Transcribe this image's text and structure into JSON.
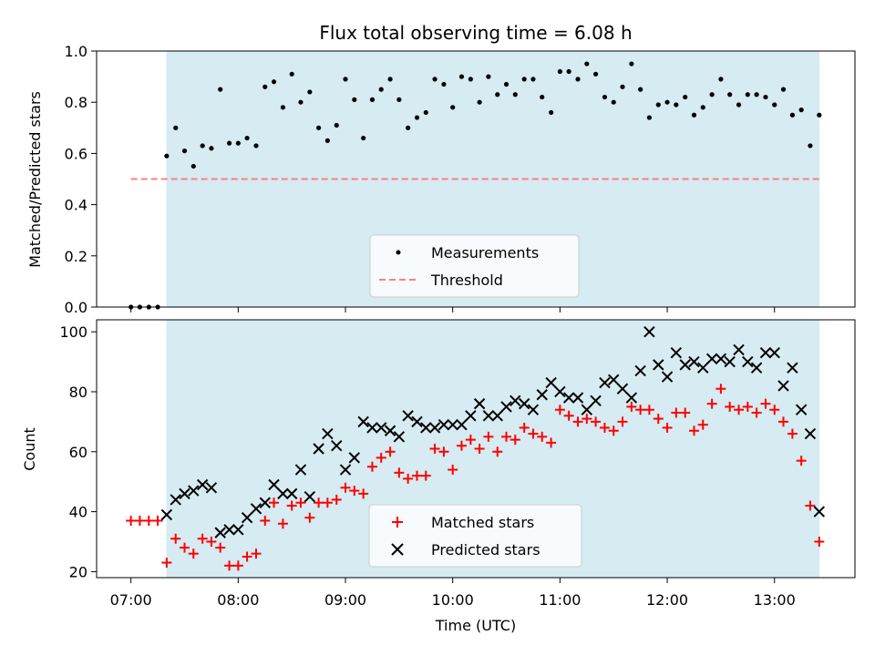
{
  "chart_data": {
    "type": "scatter",
    "title": "Flux total observing time = 6.08 h",
    "xlabel": "Time (UTC)",
    "x_ticks": [
      "07:00",
      "08:00",
      "09:00",
      "10:00",
      "11:00",
      "12:00",
      "13:00"
    ],
    "xlim_hours": [
      6.68,
      13.75
    ],
    "shaded_interval_hours": [
      7.33,
      13.42
    ],
    "colors": {
      "shade": "#add8e6",
      "measurement": "#000000",
      "threshold": "#ff7f7f",
      "matched": "#ff0000",
      "predicted": "#000000"
    },
    "panels": [
      {
        "ylabel": "Matched/Predicted stars",
        "ylim": [
          0,
          1.0
        ],
        "y_ticks": [
          "0.0",
          "0.2",
          "0.4",
          "0.6",
          "0.8",
          "1.0"
        ],
        "threshold": {
          "name": "Threshold",
          "value": 0.5,
          "x_range_hours": [
            7.0,
            13.42
          ],
          "style": "dashed"
        },
        "legend": {
          "placement": "lower center",
          "entries": [
            "Measurements",
            "Threshold"
          ]
        },
        "series": [
          {
            "name": "Measurements",
            "marker": "dot",
            "x": [
              7.0,
              7.083,
              7.167,
              7.25,
              7.333,
              7.417,
              7.5,
              7.583,
              7.667,
              7.75,
              7.833,
              7.917,
              8.0,
              8.083,
              8.167,
              8.25,
              8.333,
              8.417,
              8.5,
              8.583,
              8.667,
              8.75,
              8.833,
              8.917,
              9.0,
              9.083,
              9.167,
              9.25,
              9.333,
              9.417,
              9.5,
              9.583,
              9.667,
              9.75,
              9.833,
              9.917,
              10.0,
              10.083,
              10.167,
              10.25,
              10.333,
              10.417,
              10.5,
              10.583,
              10.667,
              10.75,
              10.833,
              10.917,
              11.0,
              11.083,
              11.167,
              11.25,
              11.333,
              11.417,
              11.5,
              11.583,
              11.667,
              11.75,
              11.833,
              11.917,
              12.0,
              12.083,
              12.167,
              12.25,
              12.333,
              12.417,
              12.5,
              12.583,
              12.667,
              12.75,
              12.833,
              12.917,
              13.0,
              13.083,
              13.167,
              13.25,
              13.333,
              13.417
            ],
            "y": [
              0,
              0,
              0,
              0,
              0.59,
              0.7,
              0.61,
              0.55,
              0.63,
              0.62,
              0.85,
              0.64,
              0.64,
              0.66,
              0.63,
              0.86,
              0.88,
              0.78,
              0.91,
              0.8,
              0.84,
              0.7,
              0.65,
              0.71,
              0.89,
              0.81,
              0.66,
              0.81,
              0.85,
              0.89,
              0.81,
              0.7,
              0.74,
              0.76,
              0.89,
              0.87,
              0.78,
              0.9,
              0.89,
              0.8,
              0.9,
              0.83,
              0.87,
              0.83,
              0.89,
              0.89,
              0.82,
              0.76,
              0.92,
              0.92,
              0.89,
              0.95,
              0.91,
              0.82,
              0.8,
              0.86,
              0.95,
              0.85,
              0.74,
              0.79,
              0.8,
              0.79,
              0.82,
              0.75,
              0.78,
              0.83,
              0.89,
              0.83,
              0.79,
              0.83,
              0.83,
              0.82,
              0.79,
              0.85,
              0.75,
              0.77,
              0.63,
              0.75
            ]
          }
        ]
      },
      {
        "ylabel": "Count",
        "ylim": [
          18,
          104
        ],
        "y_ticks": [
          "20",
          "40",
          "60",
          "80",
          "100"
        ],
        "legend": {
          "placement": "lower center",
          "entries": [
            "Matched stars",
            "Predicted stars"
          ]
        },
        "series": [
          {
            "name": "Matched stars",
            "marker": "plus",
            "x": [
              7.0,
              7.083,
              7.167,
              7.25,
              7.333,
              7.417,
              7.5,
              7.583,
              7.667,
              7.75,
              7.833,
              7.917,
              8.0,
              8.083,
              8.167,
              8.25,
              8.333,
              8.417,
              8.5,
              8.583,
              8.667,
              8.75,
              8.833,
              8.917,
              9.0,
              9.083,
              9.167,
              9.25,
              9.333,
              9.417,
              9.5,
              9.583,
              9.667,
              9.75,
              9.833,
              9.917,
              10.0,
              10.083,
              10.167,
              10.25,
              10.333,
              10.417,
              10.5,
              10.583,
              10.667,
              10.75,
              10.833,
              10.917,
              11.0,
              11.083,
              11.167,
              11.25,
              11.333,
              11.417,
              11.5,
              11.583,
              11.667,
              11.75,
              11.833,
              11.917,
              12.0,
              12.083,
              12.167,
              12.25,
              12.333,
              12.417,
              12.5,
              12.583,
              12.667,
              12.75,
              12.833,
              12.917,
              13.0,
              13.083,
              13.167,
              13.25,
              13.333,
              13.417
            ],
            "y": [
              37,
              37,
              37,
              37,
              23,
              31,
              28,
              26,
              31,
              30,
              28,
              22,
              22,
              25,
              26,
              37,
              43,
              36,
              42,
              43,
              38,
              43,
              43,
              44,
              48,
              47,
              46,
              55,
              58,
              60,
              53,
              51,
              52,
              52,
              61,
              60,
              54,
              62,
              64,
              61,
              65,
              60,
              65,
              64,
              68,
              66,
              65,
              63,
              74,
              72,
              70,
              71,
              70,
              68,
              67,
              70,
              75,
              74,
              74,
              71,
              68,
              73,
              73,
              67,
              69,
              76,
              81,
              75,
              74,
              75,
              73,
              76,
              74,
              70,
              66,
              57,
              42,
              30
            ]
          },
          {
            "name": "Predicted stars",
            "marker": "x",
            "x": [
              7.333,
              7.417,
              7.5,
              7.583,
              7.667,
              7.75,
              7.833,
              7.917,
              8.0,
              8.083,
              8.167,
              8.25,
              8.333,
              8.417,
              8.5,
              8.583,
              8.667,
              8.75,
              8.833,
              8.917,
              9.0,
              9.083,
              9.167,
              9.25,
              9.333,
              9.417,
              9.5,
              9.583,
              9.667,
              9.75,
              9.833,
              9.917,
              10.0,
              10.083,
              10.167,
              10.25,
              10.333,
              10.417,
              10.5,
              10.583,
              10.667,
              10.75,
              10.833,
              10.917,
              11.0,
              11.083,
              11.167,
              11.25,
              11.333,
              11.417,
              11.5,
              11.583,
              11.667,
              11.75,
              11.833,
              11.917,
              12.0,
              12.083,
              12.167,
              12.25,
              12.333,
              12.417,
              12.5,
              12.583,
              12.667,
              12.75,
              12.833,
              12.917,
              13.0,
              13.083,
              13.167,
              13.25,
              13.333,
              13.417
            ],
            "y": [
              39,
              44,
              46,
              47,
              49,
              48,
              33,
              34,
              34,
              38,
              41,
              43,
              49,
              46,
              46,
              54,
              45,
              61,
              66,
              62,
              54,
              58,
              70,
              68,
              68,
              67,
              65,
              72,
              70,
              68,
              68,
              69,
              69,
              69,
              72,
              76,
              72,
              72,
              75,
              77,
              76,
              74,
              79,
              83,
              80,
              78,
              78,
              74,
              77,
              83,
              84,
              81,
              78,
              87,
              100,
              89,
              85,
              93,
              89,
              90,
              88,
              91,
              91,
              90,
              94,
              90,
              88,
              93,
              93,
              82,
              88,
              74,
              66,
              40
            ]
          }
        ]
      }
    ]
  }
}
